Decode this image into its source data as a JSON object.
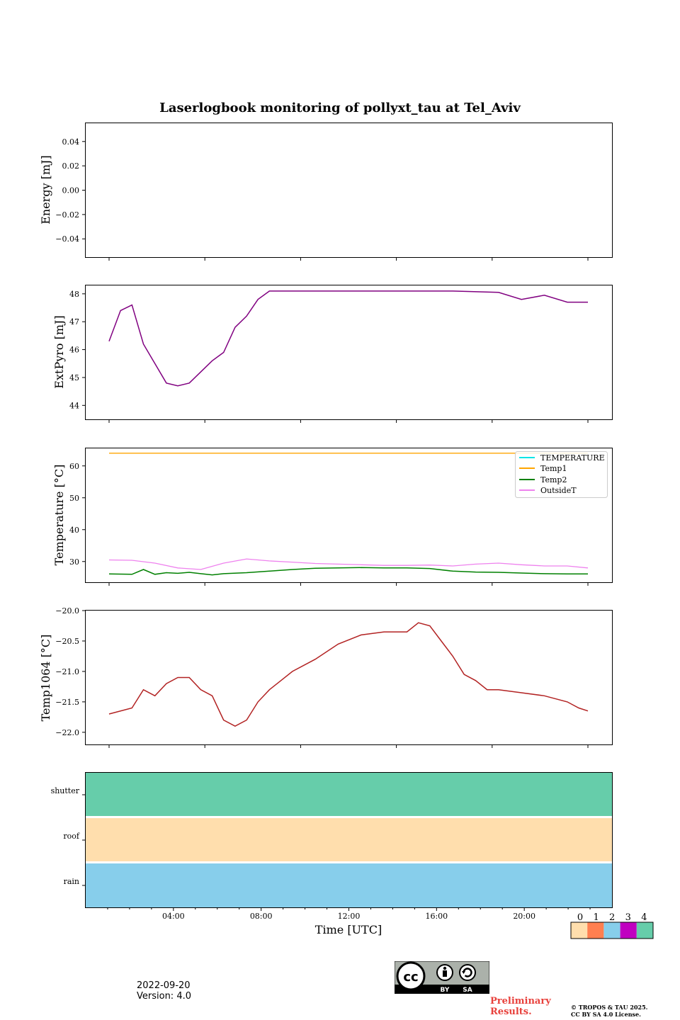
{
  "chart_data": [
    {
      "type": "line",
      "title": "Laserlogbook monitoring of pollyxt_tau at Tel_Aviv",
      "ylabel": "Energy [mJ]",
      "ylim": [
        -0.055,
        0.055
      ],
      "yticks": [
        "0.04",
        "0.02",
        "0.00",
        "−0.02",
        "−0.04"
      ],
      "ytick_values": [
        0.04,
        0.02,
        0.0,
        -0.02,
        -0.04
      ],
      "series": []
    },
    {
      "type": "line",
      "ylabel": "ExtPyro [mJ]",
      "ylim": [
        43.5,
        48.3
      ],
      "yticks": [
        "48",
        "47",
        "46",
        "45",
        "44"
      ],
      "ytick_values": [
        48,
        47,
        46,
        45,
        44
      ],
      "color": "#800080",
      "points": [
        [
          1.0,
          46.3
        ],
        [
          1.5,
          47.4
        ],
        [
          2.0,
          47.6
        ],
        [
          2.5,
          46.2
        ],
        [
          3.0,
          45.5
        ],
        [
          3.5,
          44.8
        ],
        [
          4.0,
          44.7
        ],
        [
          4.5,
          44.8
        ],
        [
          5.0,
          45.2
        ],
        [
          5.5,
          45.6
        ],
        [
          6.0,
          45.9
        ],
        [
          6.5,
          46.8
        ],
        [
          7.0,
          47.2
        ],
        [
          7.5,
          47.8
        ],
        [
          8.0,
          48.1
        ],
        [
          10.0,
          48.1
        ],
        [
          12.0,
          48.1
        ],
        [
          14.0,
          48.1
        ],
        [
          16.0,
          48.1
        ],
        [
          18.0,
          48.05
        ],
        [
          19.0,
          47.8
        ],
        [
          20.0,
          47.95
        ],
        [
          21.0,
          47.7
        ],
        [
          21.9,
          47.7
        ]
      ]
    },
    {
      "type": "line",
      "ylabel": "Temperature [°C]",
      "ylim": [
        23.5,
        65.5
      ],
      "yticks": [
        "60",
        "50",
        "40",
        "30"
      ],
      "ytick_values": [
        60,
        50,
        40,
        30
      ],
      "legend": [
        "TEMPERATURE",
        "Temp1",
        "Temp2",
        "OutsideT"
      ],
      "legend_placement": "top-right",
      "series": [
        {
          "name": "TEMPERATURE",
          "color": "#00e5e5",
          "points": []
        },
        {
          "name": "Temp1",
          "color": "#ffa500",
          "points": [
            [
              1.0,
              64.0
            ],
            [
              21.9,
              64.0
            ]
          ]
        },
        {
          "name": "Temp2",
          "color": "#008000",
          "points": [
            [
              1.0,
              26.1
            ],
            [
              2.0,
              26.0
            ],
            [
              2.5,
              27.5
            ],
            [
              3.0,
              26.0
            ],
            [
              3.5,
              26.5
            ],
            [
              4.0,
              26.3
            ],
            [
              4.5,
              26.6
            ],
            [
              5.0,
              26.2
            ],
            [
              5.5,
              25.8
            ],
            [
              6.0,
              26.2
            ],
            [
              7.0,
              26.5
            ],
            [
              8.0,
              27.0
            ],
            [
              9.0,
              27.5
            ],
            [
              10.0,
              27.9
            ],
            [
              11.0,
              28.0
            ],
            [
              12.0,
              28.1
            ],
            [
              13.0,
              28.0
            ],
            [
              14.0,
              28.0
            ],
            [
              15.0,
              27.8
            ],
            [
              16.0,
              27.0
            ],
            [
              17.0,
              26.7
            ],
            [
              18.0,
              26.6
            ],
            [
              19.0,
              26.4
            ],
            [
              20.0,
              26.2
            ],
            [
              21.0,
              26.1
            ],
            [
              21.9,
              26.1
            ]
          ]
        },
        {
          "name": "OutsideT",
          "color": "#ee82ee",
          "points": [
            [
              1.0,
              30.5
            ],
            [
              2.0,
              30.4
            ],
            [
              3.0,
              29.5
            ],
            [
              4.0,
              28.0
            ],
            [
              5.0,
              27.5
            ],
            [
              6.0,
              29.5
            ],
            [
              7.0,
              30.8
            ],
            [
              8.0,
              30.2
            ],
            [
              9.0,
              29.8
            ],
            [
              10.0,
              29.4
            ],
            [
              11.0,
              29.2
            ],
            [
              12.0,
              29.0
            ],
            [
              13.0,
              28.8
            ],
            [
              14.0,
              28.8
            ],
            [
              15.0,
              28.9
            ],
            [
              16.0,
              28.6
            ],
            [
              17.0,
              29.2
            ],
            [
              18.0,
              29.5
            ],
            [
              19.0,
              29.0
            ],
            [
              20.0,
              28.6
            ],
            [
              21.0,
              28.6
            ],
            [
              21.9,
              28.0
            ]
          ]
        }
      ]
    },
    {
      "type": "line",
      "ylabel": "Temp1064 [°C]",
      "ylim": [
        -22.2,
        -20.0
      ],
      "yticks": [
        "−20.0",
        "−20.5",
        "−21.0",
        "−21.5",
        "−22.0"
      ],
      "ytick_values": [
        -20.0,
        -20.5,
        -21.0,
        -21.5,
        -22.0
      ],
      "color": "#b22222",
      "points": [
        [
          1.0,
          -21.7
        ],
        [
          2.0,
          -21.6
        ],
        [
          2.5,
          -21.3
        ],
        [
          3.0,
          -21.4
        ],
        [
          3.5,
          -21.2
        ],
        [
          4.0,
          -21.1
        ],
        [
          4.5,
          -21.1
        ],
        [
          5.0,
          -21.3
        ],
        [
          5.5,
          -21.4
        ],
        [
          6.0,
          -21.8
        ],
        [
          6.5,
          -21.9
        ],
        [
          7.0,
          -21.8
        ],
        [
          7.5,
          -21.5
        ],
        [
          8.0,
          -21.3
        ],
        [
          8.5,
          -21.15
        ],
        [
          9.0,
          -21.0
        ],
        [
          10.0,
          -20.8
        ],
        [
          11.0,
          -20.55
        ],
        [
          12.0,
          -20.4
        ],
        [
          13.0,
          -20.35
        ],
        [
          14.0,
          -20.35
        ],
        [
          14.5,
          -20.2
        ],
        [
          15.0,
          -20.25
        ],
        [
          15.5,
          -20.5
        ],
        [
          16.0,
          -20.75
        ],
        [
          16.5,
          -21.05
        ],
        [
          17.0,
          -21.15
        ],
        [
          17.5,
          -21.3
        ],
        [
          18.0,
          -21.3
        ],
        [
          19.0,
          -21.35
        ],
        [
          20.0,
          -21.4
        ],
        [
          21.0,
          -21.5
        ],
        [
          21.5,
          -21.6
        ],
        [
          21.9,
          -21.65
        ]
      ]
    },
    {
      "type": "heatmap",
      "xlabel": "Time [UTC]",
      "rows": [
        "shutter",
        "roof",
        "rain"
      ],
      "row_values": [
        4,
        0,
        2
      ],
      "xlim": [
        0,
        24
      ],
      "xticks": [
        "04:00",
        "08:00",
        "12:00",
        "16:00",
        "20:00"
      ],
      "xtick_values": [
        4,
        8,
        12,
        16,
        20
      ],
      "colorbar": {
        "ticks": [
          "0",
          "1",
          "2",
          "3",
          "4"
        ],
        "colors": [
          "#ffdead",
          "#ff7f50",
          "#87ceeb",
          "#c000c0",
          "#66cdaa"
        ]
      }
    }
  ],
  "footer": {
    "date": "2022-09-20",
    "version": "Version: 4.0",
    "preliminary_line1": "Preliminary",
    "preliminary_line2": "Results.",
    "copyright_line1": "© TROPOS & TAU 2025.",
    "copyright_line2": "CC BY SA 4.0 License.",
    "cc_main": "cc",
    "cc_by": "BY",
    "cc_sa": "SA"
  }
}
